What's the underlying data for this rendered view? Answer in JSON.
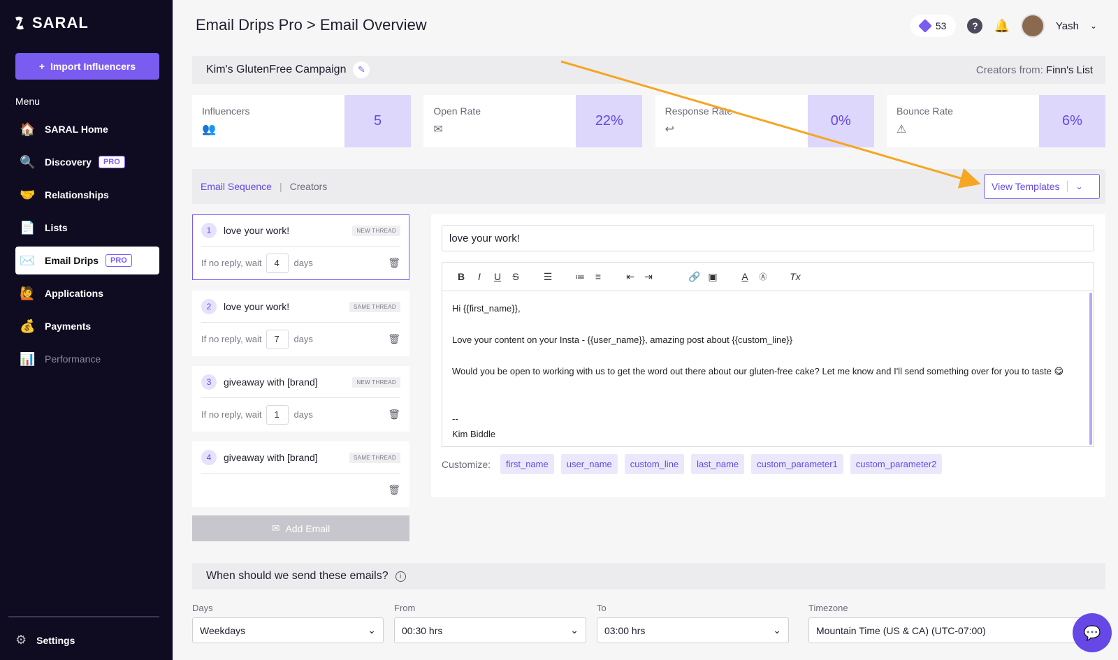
{
  "sidebar": {
    "brand": "SARAL",
    "import_label": "Import Influencers",
    "menu_label": "Menu",
    "items": [
      {
        "label": "SARAL Home",
        "icon": "🏠"
      },
      {
        "label": "Discovery",
        "icon": "🔍",
        "badge": "PRO"
      },
      {
        "label": "Relationships",
        "icon": "🤝"
      },
      {
        "label": "Lists",
        "icon": "📄"
      },
      {
        "label": "Email Drips",
        "icon": "✉️",
        "badge": "PRO"
      },
      {
        "label": "Applications",
        "icon": "🙋"
      },
      {
        "label": "Payments",
        "icon": "💰"
      },
      {
        "label": "Performance",
        "icon": "📊"
      }
    ],
    "settings_label": "Settings"
  },
  "header": {
    "title": "Email Drips Pro > Email Overview",
    "credits": "53",
    "help": "?",
    "user_name": "Yash"
  },
  "campaign": {
    "name": "Kim's GlutenFree Campaign",
    "creators_from_label": "Creators from:",
    "creators_from_value": "Finn's List"
  },
  "stats": [
    {
      "label": "Influencers",
      "value": "5"
    },
    {
      "label": "Open Rate",
      "value": "22%"
    },
    {
      "label": "Response Rate",
      "value": "0%"
    },
    {
      "label": "Bounce Rate",
      "value": "6%"
    }
  ],
  "tabs": [
    {
      "label": "Email Sequence"
    },
    {
      "label": "Creators"
    }
  ],
  "view_templates_label": "View Templates",
  "emails": [
    {
      "num": "1",
      "subject": "love your work!",
      "badge": "NEW THREAD",
      "wait_label": "If no reply, wait",
      "wait": "4",
      "days_label": "days"
    },
    {
      "num": "2",
      "subject": "love your work!",
      "badge": "SAME THREAD",
      "wait_label": "If no reply, wait",
      "wait": "7",
      "days_label": "days"
    },
    {
      "num": "3",
      "subject": "giveaway with [brand]",
      "badge": "NEW THREAD",
      "wait_label": "If no reply, wait",
      "wait": "1",
      "days_label": "days"
    },
    {
      "num": "4",
      "subject": "giveaway with [brand]",
      "badge": "SAME THREAD",
      "wait_label": "",
      "wait": "",
      "days_label": ""
    }
  ],
  "add_email_label": "Add Email",
  "editor": {
    "subject": "love your work!",
    "body_lines": [
      "Hi {{first_name}},",
      "",
      "Love your content on your Insta - {{user_name}}, amazing post about {{custom_line}}",
      "",
      "Would you be open to working with us to get the word out there about our gluten-free cake? Let me know and I'll send something over for you to taste 😋",
      "",
      "",
      "--",
      "Kim Biddle"
    ],
    "customize_label": "Customize:",
    "chips": [
      "first_name",
      "user_name",
      "custom_line",
      "last_name",
      "custom_parameter1",
      "custom_parameter2"
    ]
  },
  "schedule": {
    "title": "When should we send these emails?",
    "days_label": "Days",
    "days_value": "Weekdays",
    "from_label": "From",
    "from_value": "00:30 hrs",
    "to_label": "To",
    "to_value": "03:00 hrs",
    "timezone_label": "Timezone",
    "timezone_value": "Mountain Time (US & CA) (UTC-07:00)"
  },
  "colors": {
    "sidebar_bg": "#0f0c22",
    "accent": "#7b5cf0",
    "annotation_arrow": "#f5a623"
  }
}
